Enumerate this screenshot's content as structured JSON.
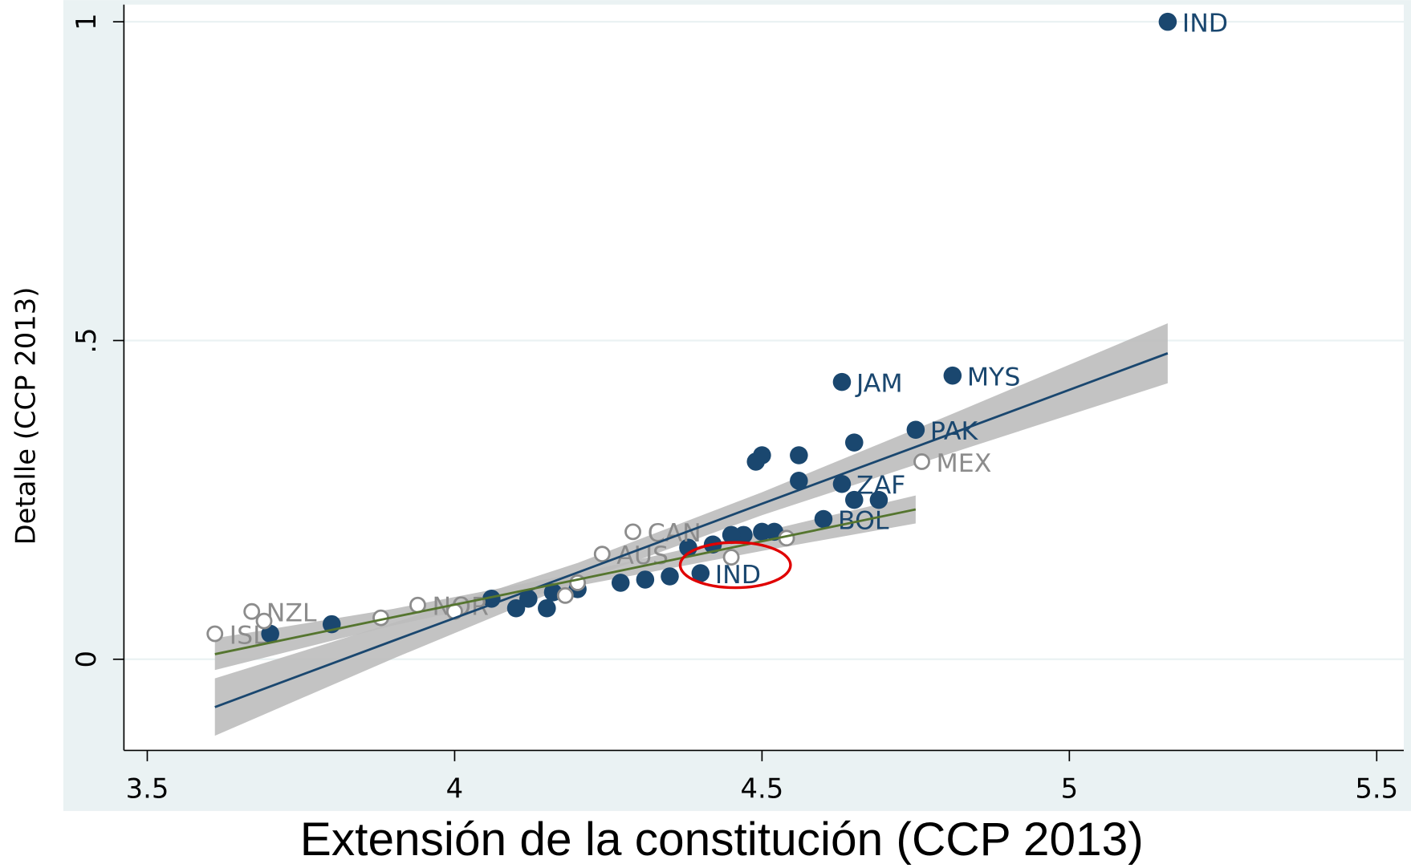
{
  "chart_data": {
    "type": "scatter",
    "x_label": "Extensión de la constitución (CCP 2013)",
    "y_label": "Detalle (CCP 2013)",
    "xlim": [
      3.462,
      5.544
    ],
    "ylim": [
      -0.143,
      1.027
    ],
    "xticks": [
      3.5,
      4,
      4.5,
      5,
      5.5
    ],
    "yticks": [
      0,
      {
        "value": 0.5,
        "label": ".5"
      },
      1
    ],
    "grid": true,
    "band_color": "#bdbdbd",
    "fits": [
      {
        "color": "#1a476f",
        "x": [
          3.61,
          3.9,
          4.2,
          4.5,
          4.8,
          5.16
        ],
        "values": [
          -0.075,
          0.029,
          0.136,
          0.244,
          0.351,
          0.48
        ],
        "ci_lower": [
          -0.12,
          0.001,
          0.121,
          0.226,
          0.321,
          0.433
        ],
        "ci_upper": [
          -0.03,
          0.057,
          0.151,
          0.262,
          0.381,
          0.527
        ]
      },
      {
        "color": "#55752f",
        "x": [
          3.61,
          3.9,
          4.2,
          4.5,
          4.75
        ],
        "values": [
          0.008,
          0.066,
          0.125,
          0.185,
          0.235
        ],
        "ci_lower": [
          -0.017,
          0.053,
          0.115,
          0.17,
          0.213
        ],
        "ci_upper": [
          0.033,
          0.079,
          0.135,
          0.2,
          0.257
        ]
      }
    ],
    "series": [
      {
        "color": "#1a476f",
        "marker": "filled",
        "x": [
          5.16,
          4.81,
          4.63,
          4.75,
          4.65,
          4.5,
          4.49,
          4.56,
          4.56,
          4.63,
          4.65,
          4.69,
          4.6,
          4.52,
          4.5,
          4.47,
          4.45,
          4.42,
          4.38,
          4.4,
          4.35,
          4.31,
          4.27,
          4.2,
          4.16,
          4.12,
          4.06,
          4.1,
          4.15,
          3.8,
          3.7
        ],
        "values": [
          1.0,
          0.445,
          0.435,
          0.36,
          0.34,
          0.32,
          0.31,
          0.32,
          0.28,
          0.275,
          0.25,
          0.25,
          0.22,
          0.2,
          0.2,
          0.195,
          0.195,
          0.18,
          0.175,
          0.135,
          0.13,
          0.125,
          0.12,
          0.11,
          0.105,
          0.095,
          0.095,
          0.08,
          0.08,
          0.055,
          0.04
        ],
        "labels": [
          "IND",
          "MYS",
          "JAM",
          "PAK",
          null,
          null,
          null,
          null,
          null,
          "ZAF",
          null,
          null,
          "BOL",
          null,
          null,
          null,
          null,
          null,
          null,
          "IND",
          null,
          null,
          null,
          null,
          null,
          null,
          null,
          null,
          null,
          null,
          null
        ]
      },
      {
        "color": "#8c8c8c",
        "marker": "hollow",
        "x": [
          4.29,
          4.24,
          3.67,
          3.61,
          3.94,
          4.76,
          4.54,
          4.45,
          4.2,
          4.0,
          3.88,
          3.69,
          4.18
        ],
        "values": [
          0.2,
          0.165,
          0.075,
          0.04,
          0.085,
          0.31,
          0.19,
          0.16,
          0.12,
          0.075,
          0.065,
          0.06,
          0.1
        ],
        "labels": [
          "CAN",
          "AUS",
          "NZL",
          "ISL",
          "NOR",
          "MEX",
          null,
          null,
          null,
          null,
          null,
          null,
          null
        ]
      }
    ]
  }
}
